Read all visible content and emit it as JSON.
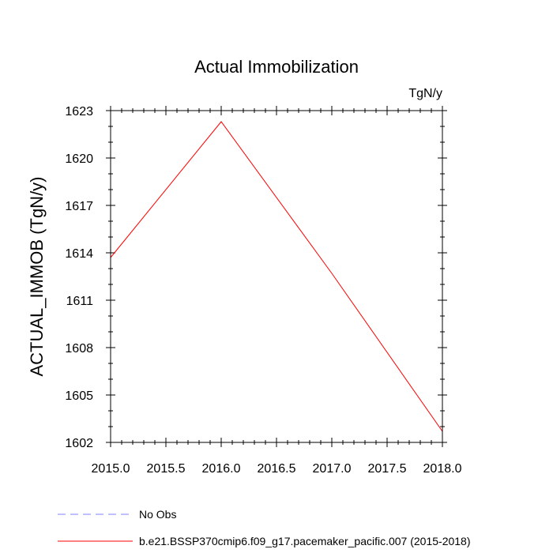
{
  "chart_data": {
    "type": "line",
    "title": "Actual Immobilization",
    "units": "TgN/y",
    "ylabel": "ACTUAL_IMMOB  (TgN/y)",
    "xlabel": "",
    "xlim": [
      2015.0,
      2018.0
    ],
    "ylim": [
      1602,
      1623
    ],
    "xticks": [
      2015.0,
      2015.5,
      2016.0,
      2016.5,
      2017.0,
      2017.5,
      2018.0
    ],
    "xtick_labels": [
      "2015.0",
      "2015.5",
      "2016.0",
      "2016.5",
      "2017.0",
      "2017.5",
      "2018.0"
    ],
    "yticks": [
      1602,
      1605,
      1608,
      1611,
      1614,
      1617,
      1620,
      1623
    ],
    "ytick_labels": [
      "1602",
      "1605",
      "1608",
      "1611",
      "1614",
      "1617",
      "1620",
      "1623"
    ],
    "grid": false,
    "legend_position": "bottom",
    "series": [
      {
        "name": "b.e21.BSSP370cmip6.f09_g17.pacemaker_pacific.007 (2015-2018)",
        "color": "#ff0000",
        "dash": "solid",
        "x": [
          2015.0,
          2016.0,
          2017.0,
          2018.0
        ],
        "y": [
          1613.7,
          1622.3,
          1612.7,
          1602.7
        ]
      },
      {
        "name": "No Obs",
        "color": "#8080ff",
        "dash": "dashed",
        "x": [],
        "y": []
      }
    ]
  }
}
